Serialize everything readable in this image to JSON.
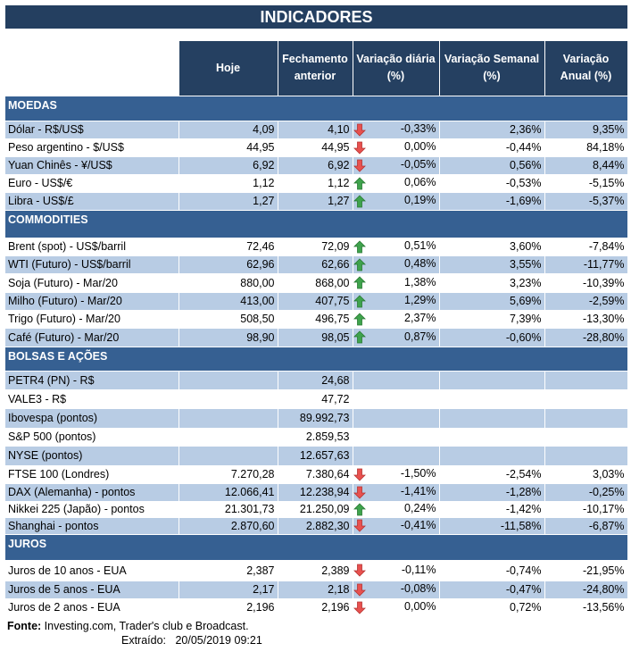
{
  "title": "INDICADORES",
  "headers": [
    "Hoje",
    "Fechamento anterior",
    "Variação diária (%)",
    "Variação Semanal (%)",
    "Variação Anual (%)"
  ],
  "colors": {
    "title_bg": "#243f60",
    "header_bg": "#254061",
    "section_bg": "#366092",
    "row_light": "#b8cce4",
    "arrow_up": "#3fa34d",
    "arrow_down": "#e8514f"
  },
  "sections": [
    {
      "name": "MOEDAS",
      "rows": [
        [
          "Dólar - R$/US$",
          "4,09",
          "4,10",
          "down",
          "-0,33%",
          "2,36%",
          "9,35%"
        ],
        [
          "Peso argentino - $/US$",
          "44,95",
          "44,95",
          "down",
          "0,00%",
          "-0,44%",
          "84,18%"
        ],
        [
          "Yuan Chinês - ¥/US$",
          "6,92",
          "6,92",
          "down",
          "-0,05%",
          "0,56%",
          "8,44%"
        ],
        [
          "Euro - US$/€",
          "1,12",
          "1,12",
          "up",
          "0,06%",
          "-0,53%",
          "-5,15%"
        ],
        [
          "Libra - US$/£",
          "1,27",
          "1,27",
          "up",
          "0,19%",
          "-1,69%",
          "-5,37%"
        ]
      ]
    },
    {
      "name": "COMMODITIES",
      "rows": [
        [
          "Brent (spot) - US$/barril",
          "72,46",
          "72,09",
          "up",
          "0,51%",
          "3,60%",
          "-7,84%"
        ],
        [
          "WTI (Futuro) - US$/barril",
          "62,96",
          "62,66",
          "up",
          "0,48%",
          "3,55%",
          "-11,77%"
        ],
        [
          "Soja (Futuro) - Mar/20",
          "880,00",
          "868,00",
          "up",
          "1,38%",
          "3,23%",
          "-10,39%"
        ],
        [
          "Milho (Futuro) - Mar/20",
          "413,00",
          "407,75",
          "up",
          "1,29%",
          "5,69%",
          "-2,59%"
        ],
        [
          "Trigo (Futuro) - Mar/20",
          "508,50",
          "496,75",
          "up",
          "2,37%",
          "7,39%",
          "-13,30%"
        ],
        [
          "Café (Futuro) - Mar/20",
          "98,90",
          "98,05",
          "up",
          "0,87%",
          "-0,60%",
          "-28,80%"
        ]
      ]
    },
    {
      "name": "BOLSAS E AÇÕES",
      "rows": [
        [
          "PETR4 (PN) - R$",
          "",
          "24,68",
          "",
          "",
          "",
          ""
        ],
        [
          "VALE3 - R$",
          "",
          "47,72",
          "",
          "",
          "",
          ""
        ],
        [
          "Ibovespa (pontos)",
          "",
          "89.992,73",
          "",
          "",
          "",
          ""
        ],
        [
          "S&P 500 (pontos)",
          "",
          "2.859,53",
          "",
          "",
          "",
          ""
        ],
        [
          "NYSE (pontos)",
          "",
          "12.657,63",
          "",
          "",
          "",
          ""
        ],
        [
          "FTSE 100 (Londres)",
          "7.270,28",
          "7.380,64",
          "down",
          "-1,50%",
          "-2,54%",
          "3,03%"
        ],
        [
          "DAX (Alemanha) - pontos",
          "12.066,41",
          "12.238,94",
          "down",
          "-1,41%",
          "-1,28%",
          "-0,25%"
        ],
        [
          "Nikkei 225 (Japão) - pontos",
          "21.301,73",
          "21.250,09",
          "up",
          "0,24%",
          "-1,42%",
          "-10,17%"
        ],
        [
          "Shanghai - pontos",
          "2.870,60",
          "2.882,30",
          "down",
          "-0,41%",
          "-11,58%",
          "-6,87%"
        ]
      ]
    },
    {
      "name": "JUROS",
      "rows": [
        [
          "Juros de 10 anos - EUA",
          "2,387",
          "2,389",
          "down",
          "-0,11%",
          "-0,74%",
          "-21,95%"
        ],
        [
          "Juros de 5 anos - EUA",
          "2,17",
          "2,18",
          "down",
          "-0,08%",
          "-0,47%",
          "-24,80%"
        ],
        [
          "Juros de 2 anos - EUA",
          "2,196",
          "2,196",
          "down",
          "0,00%",
          "0,72%",
          "-13,56%"
        ]
      ]
    }
  ],
  "footer": {
    "source_label": "Fonte:",
    "source_text": " Investing.com, Trader's club e Broadcast.",
    "extracted_label": "Extraído:",
    "extracted_value": "20/05/2019 09:21"
  }
}
